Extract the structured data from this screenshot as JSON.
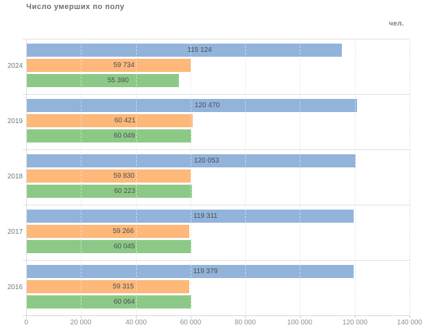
{
  "chart_data": {
    "type": "bar",
    "orientation": "horizontal",
    "title": "Число умерших по полу",
    "unit_label": "чел.",
    "legend": false,
    "grid": true,
    "value_labels_position": "inside-center",
    "categories": [
      "2024",
      "2019",
      "2018",
      "2017",
      "2016"
    ],
    "series": [
      {
        "name": "series-blue",
        "color": "#92b3da",
        "values": [
          115124,
          120470,
          120053,
          119311,
          119379
        ],
        "labels": [
          "115 124",
          "120 470",
          "120 053",
          "119 311",
          "119 379"
        ]
      },
      {
        "name": "series-orange",
        "color": "#fdb87a",
        "values": [
          59734,
          60421,
          59830,
          59266,
          59315
        ],
        "labels": [
          "59 734",
          "60 421",
          "59 830",
          "59 266",
          "59 315"
        ]
      },
      {
        "name": "series-green",
        "color": "#8cc987",
        "values": [
          55390,
          60049,
          60223,
          60045,
          60064
        ],
        "labels": [
          "55 390",
          "60 049",
          "60 223",
          "60 045",
          "60 064"
        ]
      }
    ],
    "xlim": [
      0,
      140000
    ],
    "x_ticks": [
      {
        "value": 0,
        "label": "0"
      },
      {
        "value": 20000,
        "label": "20 000"
      },
      {
        "value": 40000,
        "label": "40 000"
      },
      {
        "value": 60000,
        "label": "60 000"
      },
      {
        "value": 80000,
        "label": "80 000"
      },
      {
        "value": 100000,
        "label": "100 000"
      },
      {
        "value": 120000,
        "label": "120 000"
      },
      {
        "value": 140000,
        "label": "140 000"
      }
    ]
  }
}
